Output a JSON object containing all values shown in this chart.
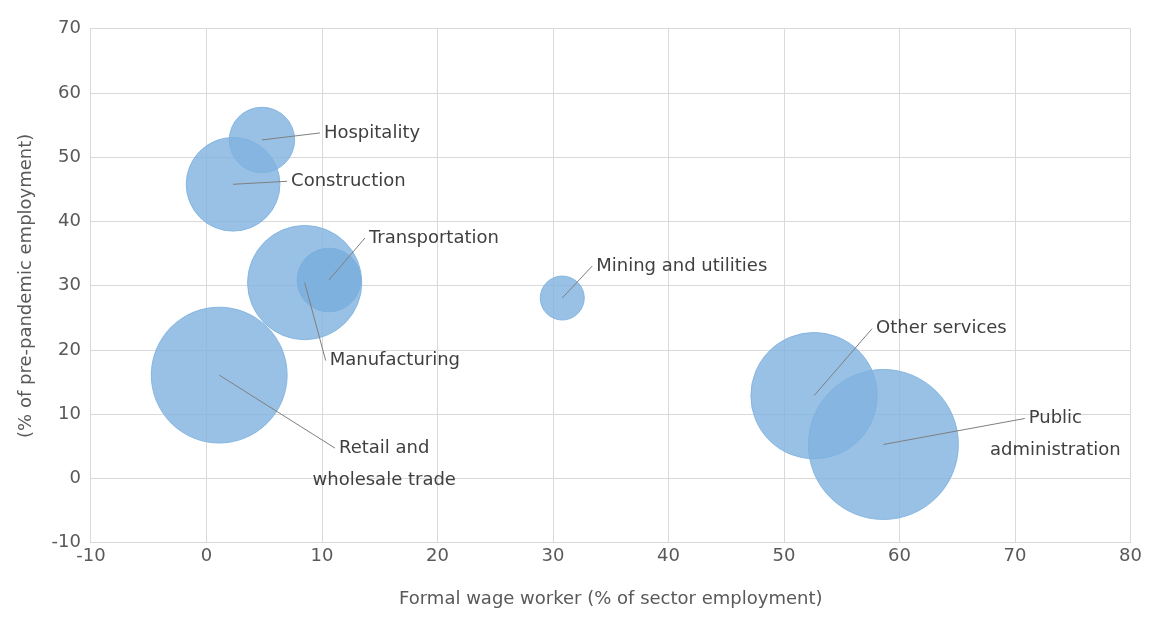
{
  "chart_data": {
    "type": "bubble",
    "xlabel": "Formal wage worker (% of sector employment)",
    "ylabel": "(% of pre-pandemic employment)",
    "xlim": [
      -10,
      80
    ],
    "xticks": [
      -10,
      0,
      10,
      20,
      30,
      40,
      50,
      60,
      70,
      80
    ],
    "ylim": [
      -10,
      70
    ],
    "yticks": [
      -10,
      0,
      10,
      20,
      30,
      40,
      50,
      60,
      70
    ],
    "grid": true,
    "legend": false,
    "series": [
      {
        "name": "Hospitality",
        "color": "#7fb2df",
        "x": [
          4.8
        ],
        "values": [
          52.7
        ],
        "sizes": [
          0.19
        ]
      },
      {
        "name": "Construction",
        "color": "#7fb2df",
        "x": [
          2.3
        ],
        "values": [
          45.8
        ],
        "sizes": [
          0.39
        ]
      },
      {
        "name": "Manufacturing",
        "color": "#7fb2df",
        "x": [
          8.5
        ],
        "values": [
          30.5
        ],
        "sizes": [
          0.58
        ]
      },
      {
        "name": "Transportation",
        "color": "#5f9bd0",
        "x": [
          10.6
        ],
        "values": [
          30.9
        ],
        "sizes": [
          0.18
        ]
      },
      {
        "name": "Mining and utilities",
        "color": "#7fb2df",
        "x": [
          30.8
        ],
        "values": [
          28.1
        ],
        "sizes": [
          0.086
        ]
      },
      {
        "name": "Retail and wholesale trade",
        "color": "#7fb2df",
        "x": [
          1.1
        ],
        "values": [
          16.1
        ],
        "sizes": [
          0.82
        ]
      },
      {
        "name": "Other services",
        "color": "#7fb2df",
        "x": [
          52.6
        ],
        "values": [
          12.9
        ],
        "sizes": [
          0.71
        ]
      },
      {
        "name": "Public administration",
        "color": "#7fb2df",
        "x": [
          58.6
        ],
        "values": [
          5.3
        ],
        "sizes": [
          1
        ]
      }
    ]
  }
}
